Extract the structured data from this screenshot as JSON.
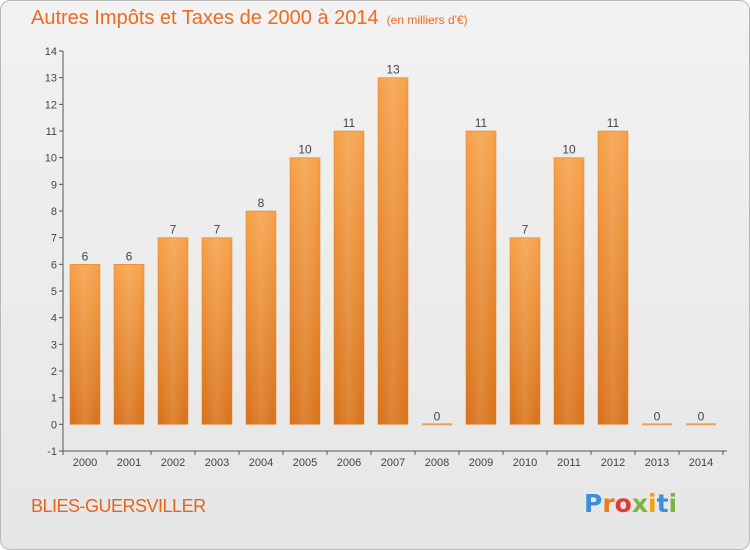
{
  "title": "Autres Impôts et Taxes de 2000 à 2014",
  "unit_note": "(en milliers d'€)",
  "commune": "BLIES-GUERSVILLER",
  "logo": {
    "text": "Proxiti",
    "letter_colors": [
      "#3b8fd8",
      "#f07b1c",
      "#e53935",
      "#7cb342",
      "#f2a20c",
      "#3b8fd8",
      "#7cb342"
    ]
  },
  "chart_data": {
    "type": "bar",
    "categories": [
      "2000",
      "2001",
      "2002",
      "2003",
      "2004",
      "2005",
      "2006",
      "2007",
      "2008",
      "2009",
      "2010",
      "2011",
      "2012",
      "2013",
      "2014"
    ],
    "values": [
      6,
      6,
      7,
      7,
      8,
      10,
      11,
      13,
      0,
      11,
      7,
      10,
      11,
      0,
      0
    ],
    "data_labels": [
      "6",
      "6",
      "7",
      "7",
      "8",
      "10",
      "11",
      "13",
      "0",
      "11",
      "7",
      "10",
      "11",
      "0",
      "0"
    ],
    "yticks": [
      "-1",
      "0",
      "1",
      "2",
      "3",
      "4",
      "5",
      "6",
      "7",
      "8",
      "9",
      "10",
      "11",
      "12",
      "13",
      "14"
    ],
    "ylim": [
      -1,
      14
    ],
    "bar_color": "#f0882c",
    "title": "Autres Impôts et Taxes de 2000 à 2014",
    "xlabel": "",
    "ylabel": "",
    "grid": false,
    "legend": "none"
  }
}
